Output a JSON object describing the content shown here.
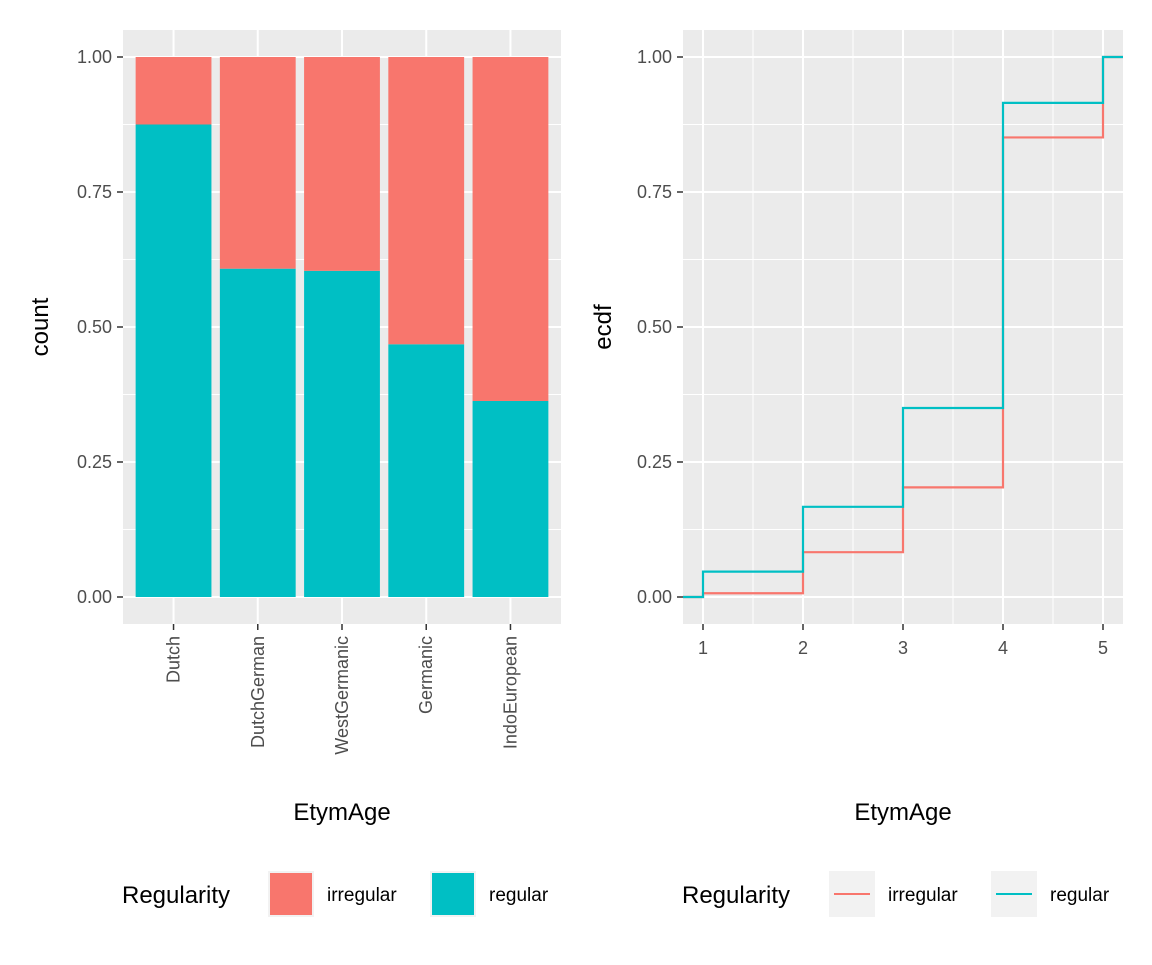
{
  "chart_data": [
    {
      "type": "bar",
      "stacked": true,
      "normalized": true,
      "categories": [
        "Dutch",
        "DutchGerman",
        "WestGermanic",
        "Germanic",
        "IndoEuropean"
      ],
      "series": [
        {
          "name": "irregular",
          "color": "#F8766D",
          "values": [
            0.125,
            0.392,
            0.396,
            0.532,
            0.637
          ]
        },
        {
          "name": "regular",
          "color": "#00BFC4",
          "values": [
            0.875,
            0.608,
            0.604,
            0.468,
            0.363
          ]
        }
      ],
      "xlabel": "EtymAge",
      "ylabel": "count",
      "ylim": [
        0,
        1
      ],
      "yticks": [
        0,
        0.25,
        0.5,
        0.75,
        1
      ],
      "ytick_labels": [
        "0.00",
        "0.25",
        "0.50",
        "0.75",
        "1.00"
      ],
      "grid": true,
      "legend": {
        "title": "Regularity",
        "position": "bottom",
        "labels": [
          "irregular",
          "regular"
        ]
      }
    },
    {
      "type": "line",
      "step": true,
      "x": [
        1,
        2,
        3,
        4,
        5
      ],
      "series": [
        {
          "name": "irregular",
          "color": "#F8766D",
          "values": [
            0.007,
            0.083,
            0.203,
            0.851,
            1.0
          ]
        },
        {
          "name": "regular",
          "color": "#00BFC4",
          "values": [
            0.047,
            0.167,
            0.35,
            0.915,
            1.0
          ]
        }
      ],
      "xlabel": "EtymAge",
      "ylabel": "ecdf",
      "xlim": [
        0.8,
        5.2
      ],
      "xticks": [
        1,
        2,
        3,
        4,
        5
      ],
      "xtick_labels": [
        "1",
        "2",
        "3",
        "4",
        "5"
      ],
      "ylim": [
        0,
        1
      ],
      "yticks": [
        0,
        0.25,
        0.5,
        0.75,
        1
      ],
      "ytick_labels": [
        "0.00",
        "0.25",
        "0.50",
        "0.75",
        "1.00"
      ],
      "grid": true,
      "legend": {
        "title": "Regularity",
        "position": "bottom",
        "labels": [
          "irregular",
          "regular"
        ]
      }
    }
  ]
}
